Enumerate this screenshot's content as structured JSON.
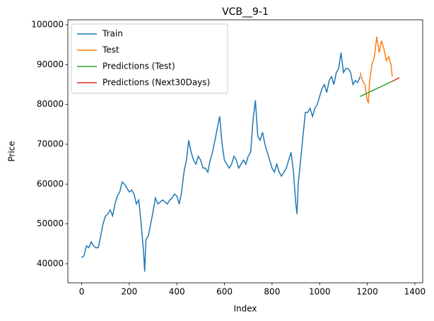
{
  "chart_data": {
    "type": "line",
    "title": "VCB__9-1",
    "x_label": "Index",
    "y_label": "Price",
    "xlim": [
      -58,
      1433
    ],
    "ylim": [
      35200,
      101250
    ],
    "xticks": [
      0,
      200,
      400,
      600,
      800,
      1000,
      1200,
      1400
    ],
    "yticks": [
      40000,
      50000,
      60000,
      70000,
      80000,
      90000,
      100000
    ],
    "legend": "upper left",
    "series": [
      {
        "name": "Train",
        "color": "#1f77b4",
        "x": [
          0,
          10,
          20,
          30,
          40,
          50,
          60,
          70,
          80,
          90,
          100,
          110,
          120,
          130,
          140,
          150,
          160,
          170,
          180,
          190,
          200,
          210,
          220,
          230,
          240,
          250,
          260,
          265,
          270,
          280,
          290,
          300,
          310,
          320,
          330,
          340,
          350,
          360,
          370,
          380,
          390,
          400,
          410,
          420,
          430,
          440,
          450,
          460,
          470,
          480,
          490,
          500,
          510,
          520,
          530,
          540,
          550,
          560,
          570,
          580,
          590,
          600,
          610,
          620,
          630,
          640,
          650,
          660,
          670,
          680,
          690,
          700,
          710,
          720,
          730,
          740,
          750,
          760,
          770,
          780,
          790,
          800,
          810,
          820,
          830,
          840,
          850,
          860,
          870,
          880,
          890,
          900,
          905,
          910,
          920,
          930,
          940,
          950,
          960,
          970,
          980,
          990,
          1000,
          1010,
          1020,
          1030,
          1040,
          1050,
          1060,
          1070,
          1080,
          1090,
          1100,
          1110,
          1120,
          1130,
          1140,
          1150,
          1160,
          1170
        ],
        "values": [
          41500,
          42000,
          44500,
          44000,
          45500,
          44500,
          44000,
          44000,
          47000,
          50000,
          52000,
          52500,
          53500,
          52000,
          55000,
          57000,
          58000,
          60500,
          60000,
          59000,
          58000,
          58500,
          57500,
          55000,
          56000,
          50000,
          43000,
          38000,
          46000,
          47000,
          50000,
          53000,
          56500,
          55000,
          55500,
          56000,
          55500,
          55000,
          56000,
          56500,
          57500,
          57000,
          55000,
          58000,
          63000,
          66000,
          71000,
          68000,
          66000,
          65000,
          67000,
          66000,
          64000,
          64000,
          63000,
          66000,
          68000,
          71000,
          74000,
          77000,
          70000,
          66000,
          65000,
          64000,
          65000,
          67000,
          66000,
          64000,
          65000,
          66000,
          65000,
          67000,
          68000,
          76000,
          81000,
          72000,
          71000,
          73000,
          70000,
          68000,
          66000,
          64000,
          63000,
          65000,
          63000,
          62000,
          63000,
          64000,
          66000,
          68000,
          63000,
          55000,
          52500,
          60000,
          66000,
          72000,
          78000,
          78000,
          79000,
          77000,
          79000,
          80000,
          82000,
          84000,
          85000,
          83000,
          86000,
          87000,
          85000,
          88000,
          89000,
          93000,
          88000,
          89000,
          89000,
          88000,
          85000,
          86000,
          85500,
          87000
        ]
      },
      {
        "name": "Test",
        "color": "#ff7f0e",
        "x": [
          1170,
          1180,
          1190,
          1200,
          1205,
          1210,
          1220,
          1230,
          1240,
          1250,
          1260,
          1270,
          1280,
          1290,
          1300,
          1305
        ],
        "values": [
          88000,
          86000,
          85000,
          81000,
          80500,
          86000,
          90000,
          92000,
          97000,
          93000,
          96000,
          94000,
          91000,
          92000,
          90000,
          87000
        ]
      },
      {
        "name": "Predictions (Test)",
        "color": "#2ca02c",
        "x": [
          1170,
          1305
        ],
        "values": [
          82000,
          85800
        ]
      },
      {
        "name": "Predictions (Next30Days)",
        "color": "#d62728",
        "x": [
          1305,
          1335
        ],
        "values": [
          85800,
          86700
        ]
      }
    ]
  }
}
